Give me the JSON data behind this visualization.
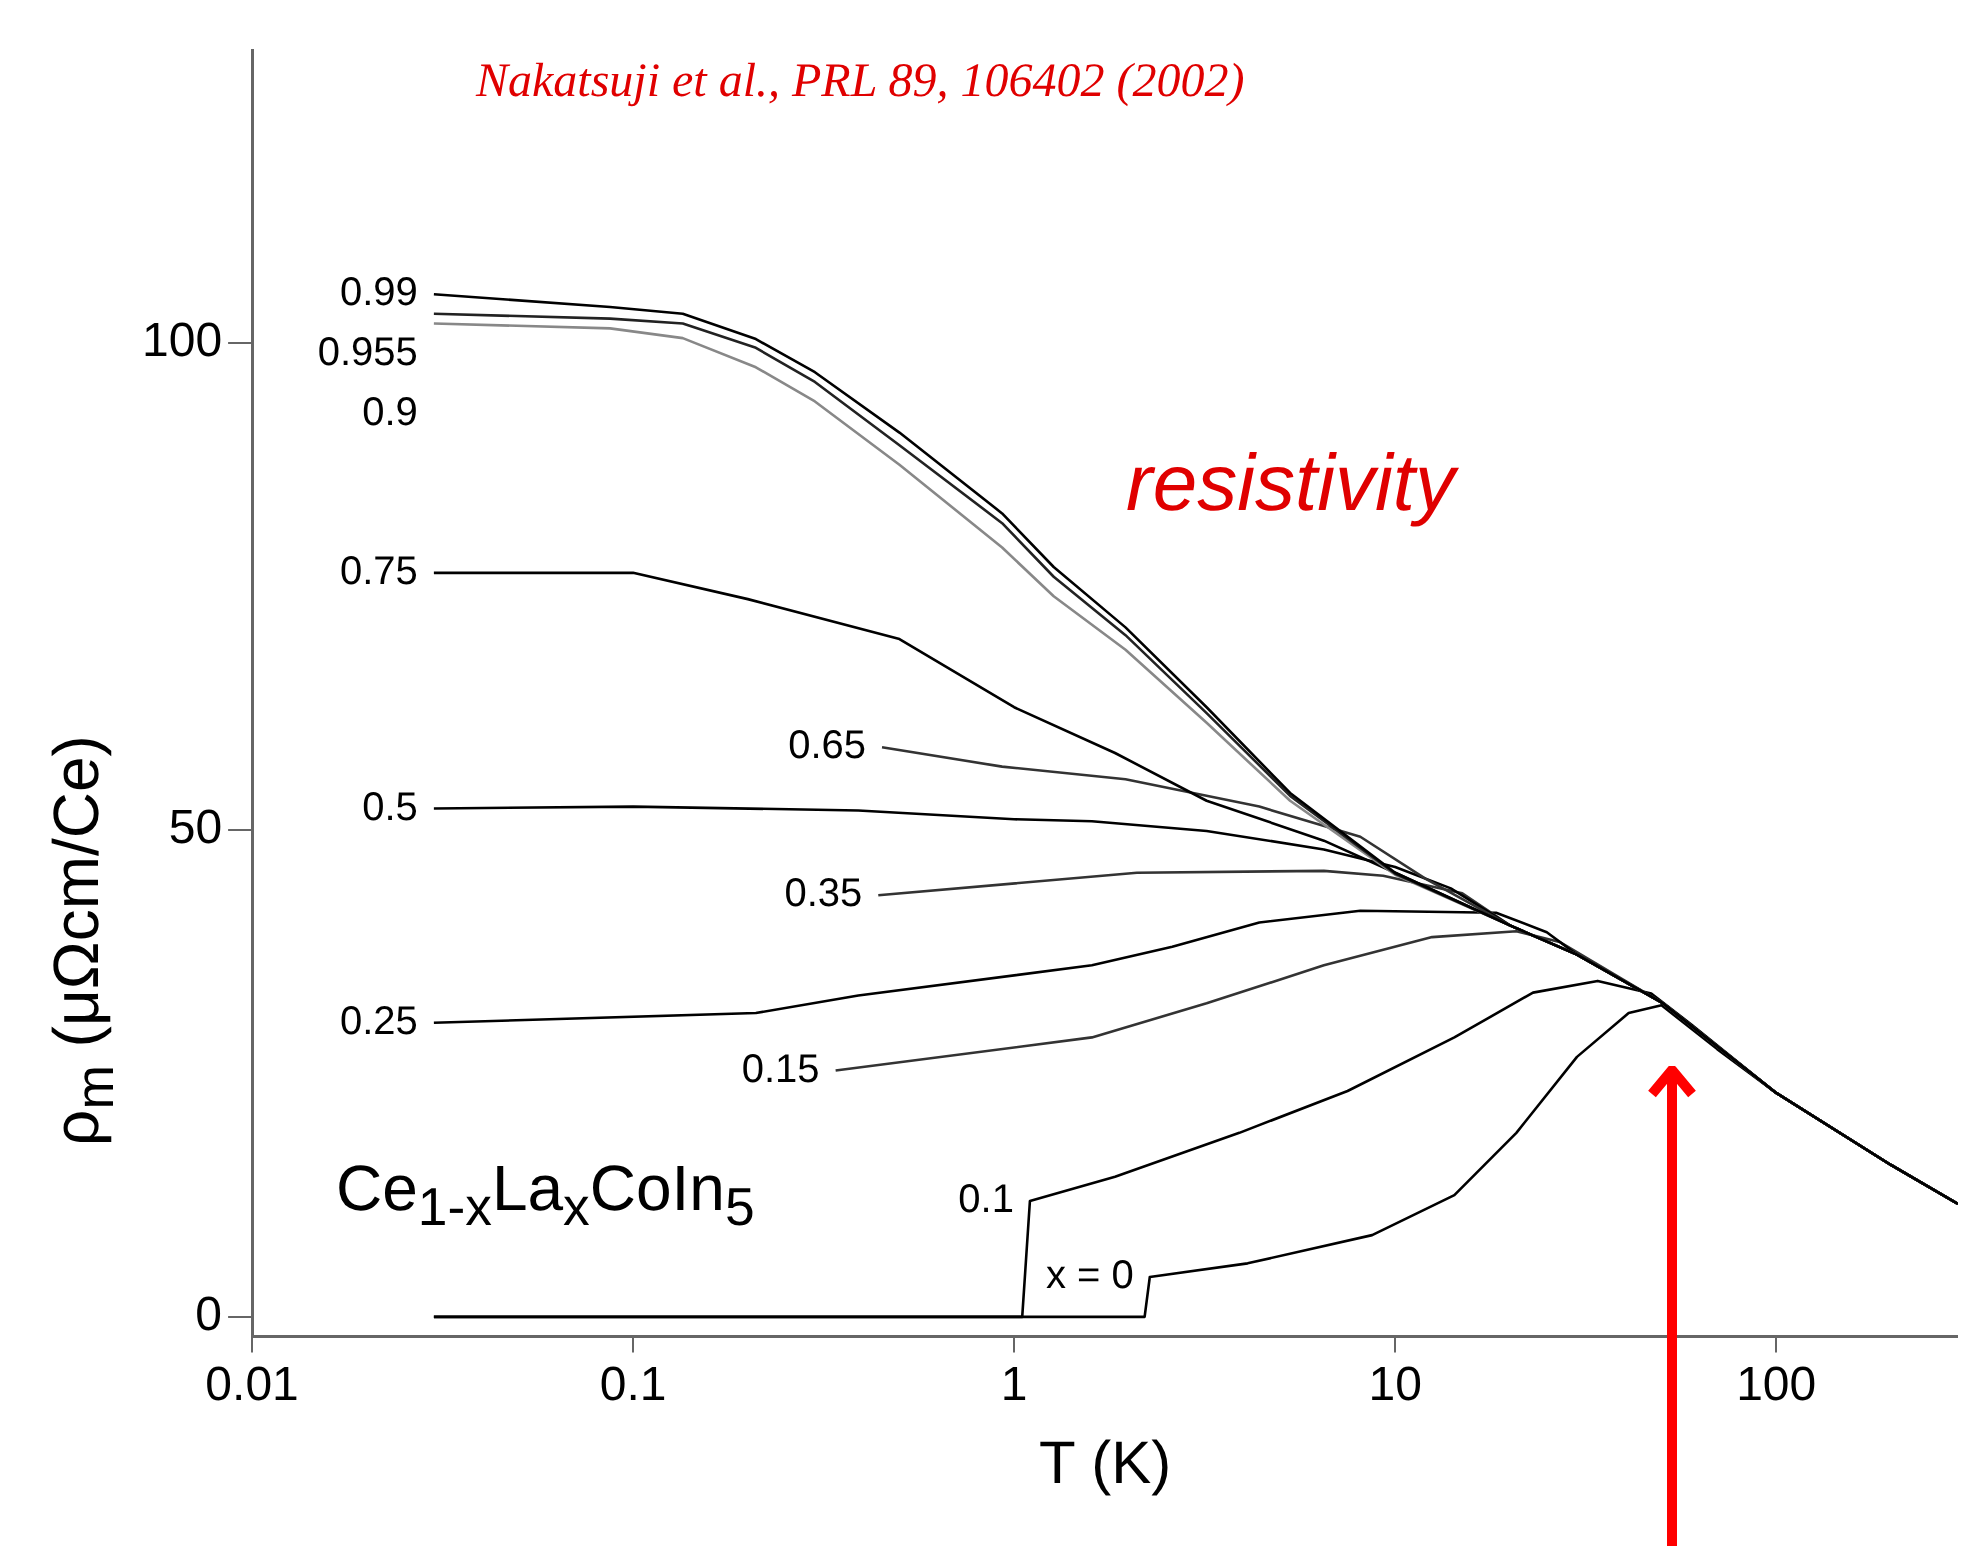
{
  "chart_data": {
    "type": "line",
    "xlabel": "T (K)",
    "ylabel": "ρ$_{m}$ (μΩcm/Ce)",
    "annotations": [
      "Nakatsuji et al., PRL 89, 106402 (2002)",
      "resistivity",
      "Ce$_{1-x}$La$_{x}$CoIn$_{5}$"
    ],
    "log": "x",
    "xlim": [
      0.01,
      300
    ],
    "xticks": [
      0.01,
      0.1,
      1,
      10,
      100
    ],
    "ylim": [
      -2,
      130
    ],
    "yticks": [
      0,
      50,
      100
    ],
    "grid": false,
    "legend": false,
    "marker": "none",
    "line_style": "solid",
    "series": [
      {
        "name": "0.99",
        "color": "#000000",
        "x": [
          0.03,
          0.087,
          0.135,
          0.21,
          0.3,
          0.5,
          0.93,
          1.27,
          1.96,
          3.2,
          5.3,
          10,
          20,
          30,
          50,
          100,
          200,
          300
        ],
        "values": [
          105,
          103.7,
          103,
          100.4,
          97,
          90.8,
          82.5,
          77,
          70.8,
          62.6,
          53.8,
          45.6,
          40.2,
          37.2,
          32.3,
          23,
          15.6,
          11.6
        ]
      },
      {
        "name": "0.955",
        "color": "#222222",
        "x": [
          0.03,
          0.087,
          0.135,
          0.21,
          0.3,
          0.5,
          0.93,
          1.27,
          1.96,
          3.2,
          5.3,
          10,
          20,
          30,
          50,
          100,
          200,
          300
        ],
        "values": [
          103,
          102.5,
          102,
          99.5,
          96,
          89.5,
          81.5,
          76,
          70,
          62,
          53.5,
          45.5,
          40.2,
          37.2,
          32.3,
          23,
          15.6,
          11.6
        ]
      },
      {
        "name": "0.9",
        "color": "#888888",
        "x": [
          0.03,
          0.087,
          0.135,
          0.21,
          0.3,
          0.5,
          0.93,
          1.27,
          1.96,
          3.2,
          5.3,
          10,
          20,
          30,
          50,
          100,
          200,
          300
        ],
        "values": [
          102,
          101.5,
          100.5,
          97.5,
          94,
          87.5,
          79,
          74,
          68.5,
          61,
          53,
          45.4,
          40.2,
          37.2,
          32.3,
          23,
          15.6,
          11.6
        ]
      },
      {
        "name": "0.75",
        "color": "#000000",
        "x": [
          0.03,
          0.1,
          0.2,
          0.5,
          1,
          1.84,
          3.2,
          6.5,
          10,
          20,
          30,
          50,
          100,
          200,
          300
        ],
        "values": [
          76.4,
          76.4,
          73.7,
          69.6,
          62.6,
          57.9,
          53,
          48.9,
          45.6,
          40.2,
          37.2,
          32.3,
          23,
          15.6,
          11.6
        ]
      },
      {
        "name": "0.65",
        "color": "#333333",
        "x": [
          0.45,
          0.93,
          1.96,
          4.4,
          8.1,
          12,
          20,
          30,
          50,
          100,
          200,
          300
        ],
        "values": [
          58.5,
          56.5,
          55.2,
          52.4,
          49.3,
          45,
          40.2,
          37.2,
          32.3,
          23,
          15.6,
          11.6
        ]
      },
      {
        "name": "0.5",
        "color": "#000000",
        "x": [
          0.03,
          0.1,
          0.39,
          1,
          1.6,
          3.2,
          6.5,
          10,
          14,
          20,
          30,
          50,
          100,
          200,
          300
        ],
        "values": [
          52.2,
          52.4,
          52,
          51.1,
          50.9,
          49.9,
          48,
          46.2,
          44,
          40.2,
          37.2,
          32.3,
          23,
          15.6,
          11.6
        ]
      },
      {
        "name": "0.35",
        "color": "#333333",
        "x": [
          0.44,
          2.1,
          6.5,
          9.3,
          15,
          20,
          30,
          50,
          100,
          200,
          300
        ],
        "values": [
          43.3,
          45.6,
          45.8,
          45.3,
          43.5,
          40.2,
          37.2,
          32.3,
          23,
          15.6,
          11.6
        ]
      },
      {
        "name": "0.25",
        "color": "#000000",
        "x": [
          0.03,
          0.21,
          0.39,
          1.6,
          2.6,
          4.4,
          8.1,
          18.4,
          25,
          30,
          50,
          100,
          200,
          300
        ],
        "values": [
          30.2,
          31.2,
          33,
          36.1,
          38,
          40.5,
          41.7,
          41.5,
          39.5,
          37.2,
          32.3,
          23,
          15.6,
          11.6
        ]
      },
      {
        "name": "0.15",
        "color": "#333333",
        "x": [
          0.34,
          1.6,
          3.2,
          6.5,
          12.5,
          20.8,
          27,
          50,
          100,
          200,
          300
        ],
        "values": [
          25.3,
          28.7,
          32.2,
          36.1,
          39,
          39.6,
          38.5,
          32.3,
          23,
          15.6,
          11.6
        ]
      },
      {
        "name": "0.1",
        "color": "#000000",
        "x": [
          0.03,
          0.5,
          1.05,
          1.1,
          1.84,
          3.9,
          7.5,
          14.3,
          23,
          34,
          47,
          60,
          100,
          200,
          300
        ],
        "values": [
          0,
          0,
          0,
          11.9,
          14.4,
          18.9,
          23.2,
          28.7,
          33.3,
          34.5,
          33.2,
          30,
          23,
          15.6,
          11.6
        ]
      },
      {
        "name": "x = 0",
        "color": "#000000",
        "x": [
          0.03,
          1,
          2.2,
          2.27,
          4.1,
          8.7,
          14.3,
          20.8,
          30,
          41,
          50,
          70,
          100,
          200,
          300
        ],
        "values": [
          0,
          0,
          0,
          4.1,
          5.5,
          8.4,
          12.5,
          18.9,
          26.7,
          31.2,
          32,
          27.5,
          23,
          15.6,
          11.6
        ]
      }
    ]
  }
}
